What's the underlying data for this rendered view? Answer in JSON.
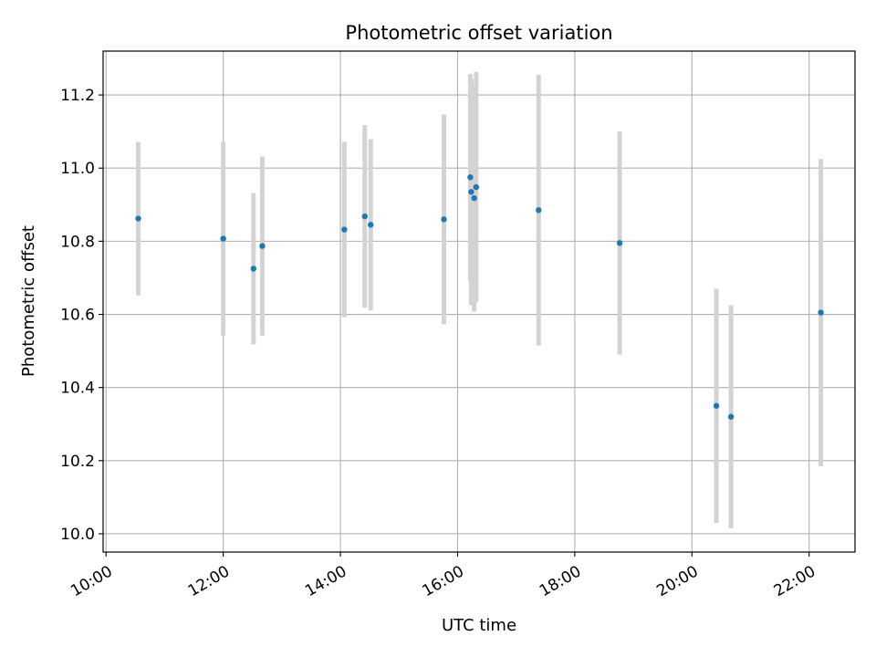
{
  "chart_data": {
    "type": "scatter",
    "title": "Photometric offset variation",
    "xlabel": "UTC time",
    "ylabel": "Photometric offset",
    "x_ticks": [
      "10:00",
      "12:00",
      "14:00",
      "16:00",
      "18:00",
      "20:00",
      "22:00"
    ],
    "y_ticks": [
      "10.0",
      "10.2",
      "10.4",
      "10.6",
      "10.8",
      "11.0",
      "11.2"
    ],
    "xlim": [
      "09:57",
      "22:47"
    ],
    "ylim": [
      9.95,
      11.32
    ],
    "grid": true,
    "errorbar_color": "#d3d3d3",
    "point_color": "#1f77b4",
    "points": [
      {
        "t": "10:33",
        "y": 10.862,
        "err": 0.21
      },
      {
        "t": "12:00",
        "y": 10.807,
        "err": 0.265
      },
      {
        "t": "12:31",
        "y": 10.725,
        "err": 0.207
      },
      {
        "t": "12:40",
        "y": 10.787,
        "err": 0.245
      },
      {
        "t": "14:04",
        "y": 10.832,
        "err": 0.24
      },
      {
        "t": "14:25",
        "y": 10.868,
        "err": 0.25
      },
      {
        "t": "14:31",
        "y": 10.845,
        "err": 0.234
      },
      {
        "t": "15:46",
        "y": 10.86,
        "err": 0.287
      },
      {
        "t": "16:13",
        "y": 10.975,
        "err": 0.283
      },
      {
        "t": "16:14",
        "y": 10.935,
        "err": 0.31
      },
      {
        "t": "16:17",
        "y": 10.918,
        "err": 0.31
      },
      {
        "t": "16:19",
        "y": 10.948,
        "err": 0.315
      },
      {
        "t": "17:23",
        "y": 10.885,
        "err": 0.37
      },
      {
        "t": "18:46",
        "y": 10.795,
        "err": 0.305
      },
      {
        "t": "20:25",
        "y": 10.35,
        "err": 0.32
      },
      {
        "t": "20:40",
        "y": 10.32,
        "err": 0.305
      },
      {
        "t": "22:12",
        "y": 10.605,
        "err": 0.42
      }
    ]
  }
}
